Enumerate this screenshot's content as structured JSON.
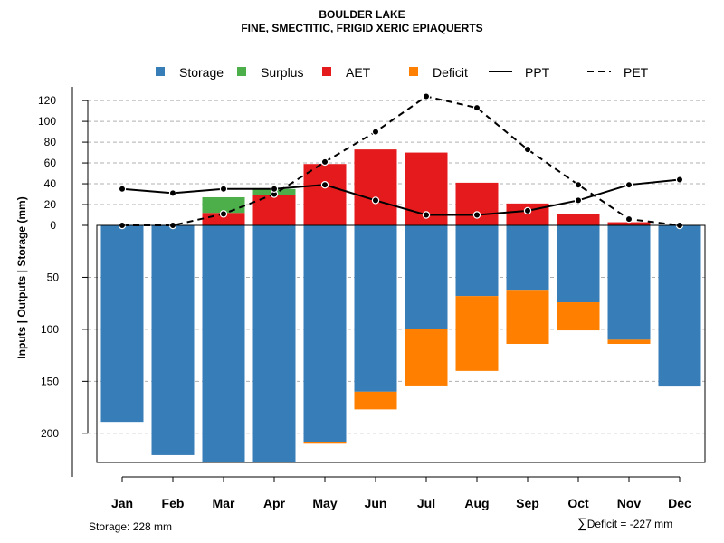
{
  "chart_data": {
    "type": "bar",
    "title": "BOULDER LAKE",
    "subtitle": "FINE, SMECTITIC, FRIGID XERIC EPIAQUERTS",
    "ylabel": "Inputs | Outputs | Storage     (mm)",
    "xlabel": "",
    "categories": [
      "Jan",
      "Feb",
      "Mar",
      "Apr",
      "May",
      "Jun",
      "Jul",
      "Aug",
      "Sep",
      "Oct",
      "Nov",
      "Dec"
    ],
    "upper_ticks": [
      0,
      20,
      40,
      60,
      80,
      100,
      120
    ],
    "lower_ticks": [
      50,
      100,
      150,
      200
    ],
    "upper_ylim": [
      0,
      125
    ],
    "lower_ylim": [
      0,
      228
    ],
    "grid": true,
    "legend_position": "top",
    "legend": [
      {
        "label": "Storage",
        "kind": "box",
        "color": "#377EB8"
      },
      {
        "label": "Surplus",
        "kind": "box",
        "color": "#4DAF4A"
      },
      {
        "label": "AET",
        "kind": "box",
        "color": "#E41A1C"
      },
      {
        "label": "Deficit",
        "kind": "box",
        "color": "#FF7F00"
      },
      {
        "label": "PPT",
        "kind": "solid",
        "color": "#000000"
      },
      {
        "label": "PET",
        "kind": "dashed",
        "color": "#000000"
      }
    ],
    "series": [
      {
        "name": "AET",
        "color": "#E41A1C",
        "values": [
          0,
          0,
          12,
          29,
          59,
          73,
          70,
          41,
          21,
          11,
          3,
          0
        ]
      },
      {
        "name": "Surplus",
        "color": "#4DAF4A",
        "values": [
          0,
          0,
          15,
          6,
          0,
          0,
          0,
          0,
          0,
          0,
          0,
          0
        ]
      },
      {
        "name": "Storage",
        "color": "#377EB8",
        "values": [
          189,
          221,
          228,
          228,
          208,
          160,
          100,
          68,
          62,
          74,
          110,
          155
        ]
      },
      {
        "name": "Deficit",
        "color": "#FF7F00",
        "values": [
          0,
          0,
          0,
          0,
          2,
          17,
          54,
          72,
          52,
          27,
          4,
          0
        ]
      },
      {
        "name": "PPT",
        "color": "#000000",
        "values": [
          35,
          31,
          35,
          35,
          39,
          24,
          10,
          10,
          14,
          24,
          39,
          44
        ]
      },
      {
        "name": "PET",
        "color": "#000000",
        "values": [
          0,
          0,
          11,
          30,
          61,
          90,
          124,
          113,
          73,
          39,
          6,
          0
        ]
      }
    ]
  },
  "footer": {
    "storage_note": "Storage: 228 mm",
    "deficit_symbol": "∑",
    "deficit_note": "Deficit = -227 mm"
  }
}
